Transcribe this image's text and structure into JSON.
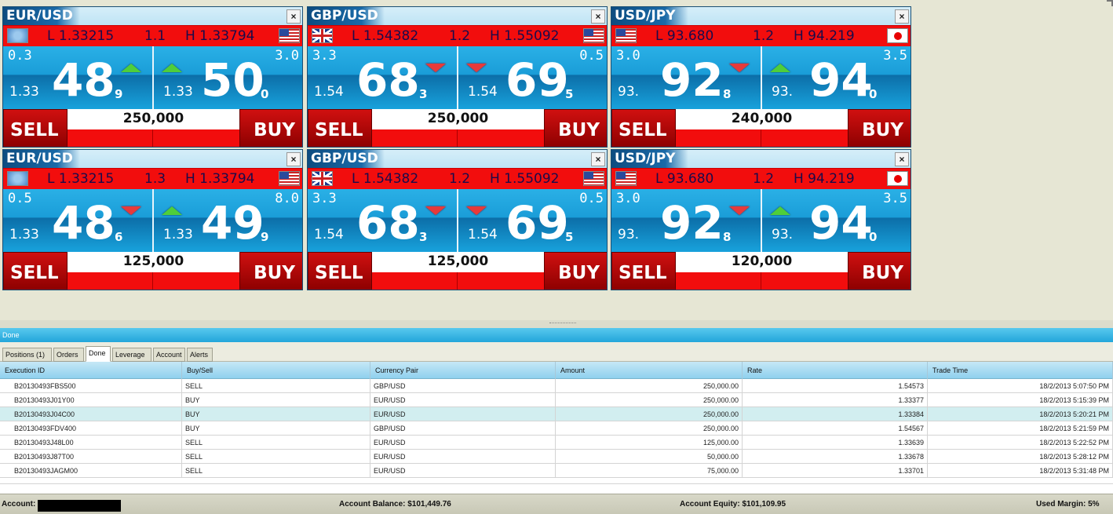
{
  "tiles": [
    {
      "pair": "EUR/USD",
      "low": "L 1.33215",
      "spread": "1.1",
      "high": "H 1.33794",
      "flag_left": "eu-flag",
      "flag_right": "us-flag",
      "sell": {
        "spread": "0.3",
        "prefix": "1.33",
        "big": "48",
        "small": "9",
        "arrow": "up"
      },
      "buy": {
        "spread": "3.0",
        "prefix": "1.33",
        "big": "50",
        "small": "0",
        "arrow": "up"
      },
      "amount": "250,000"
    },
    {
      "pair": "GBP/USD",
      "low": "L 1.54382",
      "spread": "1.2",
      "high": "H 1.55092",
      "flag_left": "gb-flag",
      "flag_right": "us-flag",
      "sell": {
        "spread": "3.3",
        "prefix": "1.54",
        "big": "68",
        "small": "3",
        "arrow": "down"
      },
      "buy": {
        "spread": "0.5",
        "prefix": "1.54",
        "big": "69",
        "small": "5",
        "arrow": "down"
      },
      "amount": "250,000"
    },
    {
      "pair": "USD/JPY",
      "low": "L 93.680",
      "spread": "1.2",
      "high": "H 94.219",
      "flag_left": "us-flag",
      "flag_right": "jp-flag",
      "sell": {
        "spread": "3.0",
        "prefix": "93.",
        "big": "92",
        "small": "8",
        "arrow": "down"
      },
      "buy": {
        "spread": "3.5",
        "prefix": "93.",
        "big": "94",
        "small": "0",
        "arrow": "up"
      },
      "amount": "240,000"
    },
    {
      "pair": "EUR/USD",
      "low": "L 1.33215",
      "spread": "1.3",
      "high": "H 1.33794",
      "flag_left": "eu-flag",
      "flag_right": "us-flag",
      "sell": {
        "spread": "0.5",
        "prefix": "1.33",
        "big": "48",
        "small": "6",
        "arrow": "down"
      },
      "buy": {
        "spread": "8.0",
        "prefix": "1.33",
        "big": "49",
        "small": "9",
        "arrow": "up"
      },
      "amount": "125,000"
    },
    {
      "pair": "GBP/USD",
      "low": "L 1.54382",
      "spread": "1.2",
      "high": "H 1.55092",
      "flag_left": "gb-flag",
      "flag_right": "us-flag",
      "sell": {
        "spread": "3.3",
        "prefix": "1.54",
        "big": "68",
        "small": "3",
        "arrow": "down"
      },
      "buy": {
        "spread": "0.5",
        "prefix": "1.54",
        "big": "69",
        "small": "5",
        "arrow": "down"
      },
      "amount": "125,000"
    },
    {
      "pair": "USD/JPY",
      "low": "L 93.680",
      "spread": "1.2",
      "high": "H 94.219",
      "flag_left": "us-flag",
      "flag_right": "jp-flag",
      "sell": {
        "spread": "3.0",
        "prefix": "93.",
        "big": "92",
        "small": "8",
        "arrow": "down"
      },
      "buy": {
        "spread": "3.5",
        "prefix": "93.",
        "big": "94",
        "small": "0",
        "arrow": "up"
      },
      "amount": "120,000"
    }
  ],
  "labels": {
    "sell": "SELL",
    "buy": "BUY",
    "close": "×"
  },
  "status_text": "Done",
  "tabs": [
    "Positions (1)",
    "Orders",
    "Done",
    "Leverage",
    "Account",
    "Alerts"
  ],
  "active_tab": "Done",
  "grid": {
    "columns": [
      "Execution ID",
      "Buy/Sell",
      "Currency Pair",
      "Amount",
      "Rate",
      "Trade Time"
    ],
    "rows": [
      [
        "B20130493FBS500",
        "SELL",
        "GBP/USD",
        "250,000.00",
        "1.54573",
        "18/2/2013 5:07:50 PM"
      ],
      [
        "B20130493J01Y00",
        "BUY",
        "EUR/USD",
        "250,000.00",
        "1.33377",
        "18/2/2013 5:15:39 PM"
      ],
      [
        "B20130493J04C00",
        "BUY",
        "EUR/USD",
        "250,000.00",
        "1.33384",
        "18/2/2013 5:20:21 PM"
      ],
      [
        "B20130493FDV400",
        "BUY",
        "GBP/USD",
        "250,000.00",
        "1.54567",
        "18/2/2013 5:21:59 PM"
      ],
      [
        "B20130493J48L00",
        "SELL",
        "EUR/USD",
        "125,000.00",
        "1.33639",
        "18/2/2013 5:22:52 PM"
      ],
      [
        "B20130493J87T00",
        "SELL",
        "EUR/USD",
        "50,000.00",
        "1.33678",
        "18/2/2013 5:28:12 PM"
      ],
      [
        "B20130493JAGM00",
        "SELL",
        "EUR/USD",
        "75,000.00",
        "1.33701",
        "18/2/2013 5:31:48 PM"
      ]
    ],
    "selected_row": 2
  },
  "footer": {
    "account_label": "Account:",
    "balance": "Account Balance:  $101,449.76",
    "equity": "Account Equity: $101,109.95",
    "margin": "Used Margin: 5%"
  }
}
